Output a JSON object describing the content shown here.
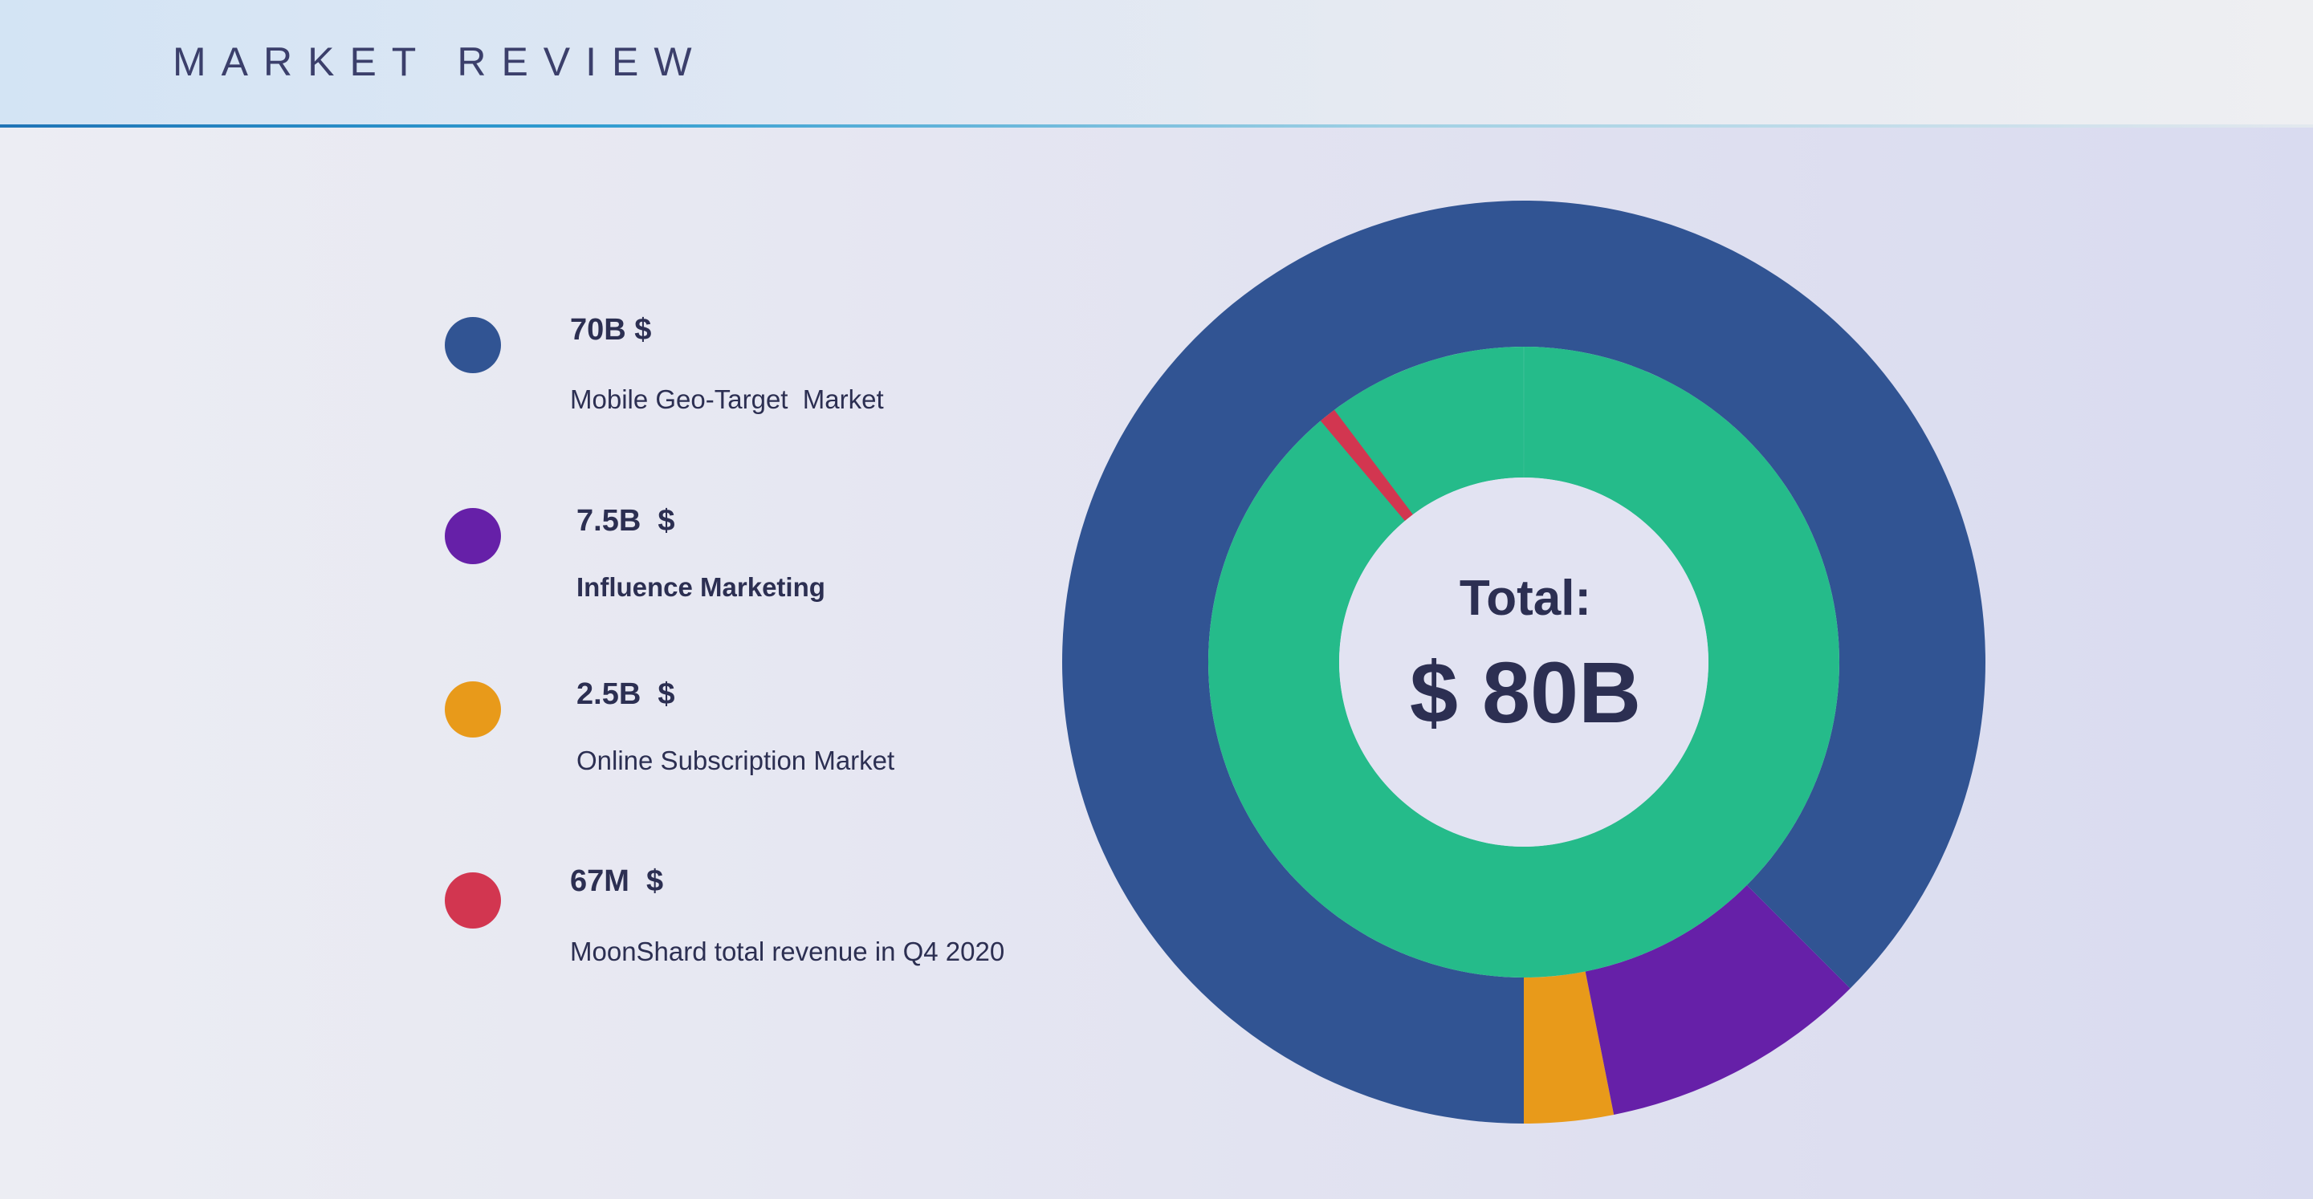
{
  "header": {
    "title": "MARKET REVIEW"
  },
  "chart_data": {
    "type": "pie",
    "style": "nested-donut",
    "outer_ring": {
      "series": [
        {
          "name": "Mobile Geo-Target  Market",
          "value_label": "70B $",
          "value": 70000,
          "unit": "M$",
          "color": "#315493"
        },
        {
          "name": "Influence Marketing",
          "value_label": "7.5B  $",
          "value": 7500,
          "unit": "M$",
          "color": "#6620a8"
        },
        {
          "name": "Online Subscription Market",
          "value_label": "2.5B  $",
          "value": 2500,
          "unit": "M$",
          "color": "#e89a1a"
        }
      ]
    },
    "inner_ring": {
      "series": [
        {
          "name": "Influence Marketing",
          "value_label": "7.5B  $",
          "value": 7500,
          "unit": "M$",
          "color": "#25bb8a"
        },
        {
          "name": "MoonShard total revenue in Q4 2020",
          "value_label": "67M  $",
          "value": 67,
          "unit": "M$",
          "color": "#d23650"
        }
      ]
    },
    "center": {
      "label": "Total:",
      "value": "$ 80B"
    },
    "legend_position": "left",
    "legend": [
      {
        "value": "70B $",
        "label": "Mobile Geo-Target  Market",
        "color": "#315493",
        "label_bold": false
      },
      {
        "value": "7.5B  $",
        "label": "Influence Marketing",
        "color": "#6620a8",
        "label_bold": true
      },
      {
        "value": "2.5B  $",
        "label": "Online Subscription Market",
        "color": "#e89a1a",
        "label_bold": false
      },
      {
        "value": "67M  $",
        "label": "MoonShard total revenue in Q4 2020",
        "color": "#d23650",
        "label_bold": false
      }
    ]
  }
}
